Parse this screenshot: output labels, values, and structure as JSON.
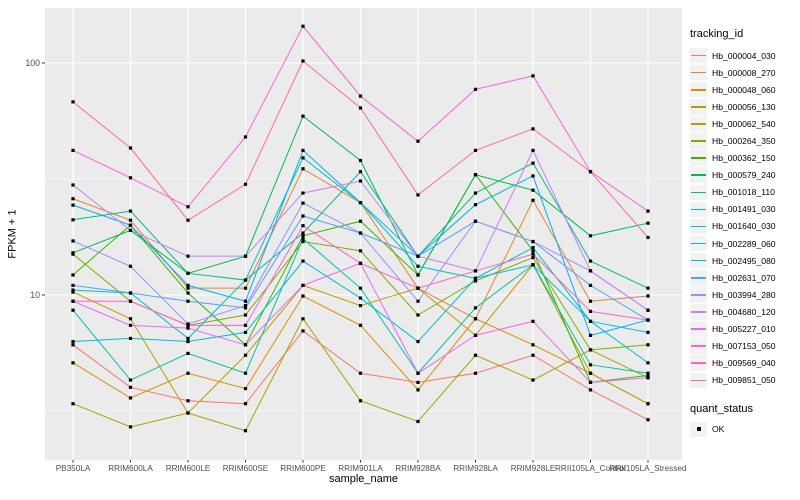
{
  "chart_data": {
    "type": "line",
    "title": "",
    "xlabel": "sample_name",
    "ylabel": "FPKM + 1",
    "x_categories": [
      "PB350LA",
      "RRIM600LA",
      "RRIM600LE",
      "RRIM600SE",
      "RRIM600PE",
      "RRIM901LA",
      "RRIM928BA",
      "RRIM928LA",
      "RRIM928LE",
      "RRII105LA_Control",
      "RRII105LA_Stressed"
    ],
    "y_scale": "log10",
    "ylim": [
      1.95,
      172
    ],
    "y_ticks": [
      {
        "value": 100,
        "label": "100"
      },
      {
        "value": 10,
        "label": "10"
      }
    ],
    "y_minor_gridlines": [
      31.62,
      3.162
    ],
    "grid": true,
    "panel_bg": "#EBEBEB",
    "grid_color": "#FFFFFF",
    "tick_color": "#333333",
    "axis_text_color": "#4D4D4D",
    "marker": {
      "shape": "square",
      "color": "#000000",
      "size": 3.2
    },
    "legend_tracking": {
      "title": "tracking_id"
    },
    "legend_quant": {
      "title": "quant_status",
      "items": [
        "OK"
      ]
    },
    "series": [
      {
        "name": "Hb_000004_030",
        "color": "#F8766D",
        "values": [
          6.1,
          4.0,
          3.5,
          3.4,
          7.0,
          4.6,
          4.2,
          4.6,
          5.5,
          3.9,
          2.9
        ]
      },
      {
        "name": "Hb_000008_270",
        "color": "#EA8331",
        "values": [
          26,
          21,
          10.7,
          10.7,
          35,
          25,
          10.7,
          7.9,
          25.6,
          9.4,
          9.9
        ]
      },
      {
        "name": "Hb_000048_060",
        "color": "#D89000",
        "values": [
          5.1,
          3.6,
          4.6,
          3.95,
          9.9,
          7.4,
          3.9,
          7.9,
          6.1,
          4.6,
          3.4
        ]
      },
      {
        "name": "Hb_000056_130",
        "color": "#C09B00",
        "values": [
          10.3,
          7.9,
          3.1,
          5.5,
          11,
          9.0,
          10.7,
          6.7,
          13.5,
          4.6,
          3.4
        ]
      },
      {
        "name": "Hb_000062_540",
        "color": "#A3A500",
        "values": [
          3.4,
          2.7,
          3.1,
          2.6,
          7.9,
          3.5,
          2.85,
          5.5,
          4.3,
          5.8,
          4.4
        ]
      },
      {
        "name": "Hb_000264_350",
        "color": "#7CAE00",
        "values": [
          15,
          9.4,
          7.4,
          8.2,
          17,
          15.5,
          8.2,
          11.5,
          14.5,
          5.8,
          6.1
        ]
      },
      {
        "name": "Hb_000362_150",
        "color": "#39B600",
        "values": [
          12.2,
          20,
          10.2,
          6.1,
          18,
          20.8,
          12.2,
          33,
          15.5,
          4.2,
          4.5
        ]
      },
      {
        "name": "Hb_000579_240",
        "color": "#00BB4E",
        "values": [
          15.2,
          19,
          12.4,
          14.7,
          59,
          38,
          12.2,
          33,
          28.3,
          18,
          20.4
        ]
      },
      {
        "name": "Hb_001018_110",
        "color": "#00BF7D",
        "values": [
          21.1,
          23,
          12.4,
          11.6,
          18.5,
          34,
          14.7,
          27.5,
          37,
          14,
          10.7
        ]
      },
      {
        "name": "Hb_001491_030",
        "color": "#00C1A3",
        "values": [
          8.6,
          4.3,
          5.6,
          4.6,
          17.5,
          10.7,
          4.6,
          8.8,
          13.5,
          5.0,
          4.6
        ]
      },
      {
        "name": "Hb_001640_030",
        "color": "#00BFC4",
        "values": [
          10.5,
          10.2,
          6.5,
          11.6,
          39,
          25,
          13.3,
          11.8,
          16,
          7.7,
          5.1
        ]
      },
      {
        "name": "Hb_002289_060",
        "color": "#00BBDC",
        "values": [
          6.3,
          6.5,
          6.3,
          6.9,
          14,
          9.7,
          6.3,
          11.8,
          13.5,
          7.7,
          6.9
        ]
      },
      {
        "name": "Hb_002495_080",
        "color": "#00B0F6",
        "values": [
          24.4,
          20,
          11,
          9.4,
          42,
          25,
          14.7,
          24.5,
          32.6,
          6.7,
          7.8
        ]
      },
      {
        "name": "Hb_002631_070",
        "color": "#529EFF",
        "values": [
          11,
          10.2,
          9.4,
          8.8,
          21.9,
          18.5,
          14.7,
          20.8,
          17,
          11,
          7.8
        ]
      },
      {
        "name": "Hb_003994_280",
        "color": "#9590FF",
        "values": [
          17.1,
          13.3,
          7.5,
          9.0,
          24.9,
          18.5,
          9.4,
          20.8,
          17,
          12.7,
          8.6
        ]
      },
      {
        "name": "Hb_004680_120",
        "color": "#C77CFF",
        "values": [
          29.8,
          19,
          14.7,
          14.7,
          27.5,
          31,
          14.7,
          12.7,
          42,
          12.7,
          8.6
        ]
      },
      {
        "name": "Hb_005227_010",
        "color": "#E76BF3",
        "values": [
          9.4,
          7.4,
          7.2,
          6.1,
          11,
          13.7,
          4.6,
          6.7,
          7.7,
          4.2,
          4.4
        ]
      },
      {
        "name": "Hb_007153_050",
        "color": "#FA62DB",
        "values": [
          42,
          32,
          24,
          48,
          144,
          72,
          46,
          77,
          88,
          34,
          23
        ]
      },
      {
        "name": "Hb_009569_040",
        "color": "#FF61C3",
        "values": [
          9.4,
          9.4,
          7.4,
          7.4,
          19.9,
          13.7,
          10.7,
          12.7,
          15,
          8.5,
          7.8
        ]
      },
      {
        "name": "Hb_009851_050",
        "color": "#FF6A98",
        "values": [
          68,
          43,
          21,
          30,
          102,
          64,
          27,
          42,
          52,
          34,
          17.7
        ]
      }
    ]
  }
}
